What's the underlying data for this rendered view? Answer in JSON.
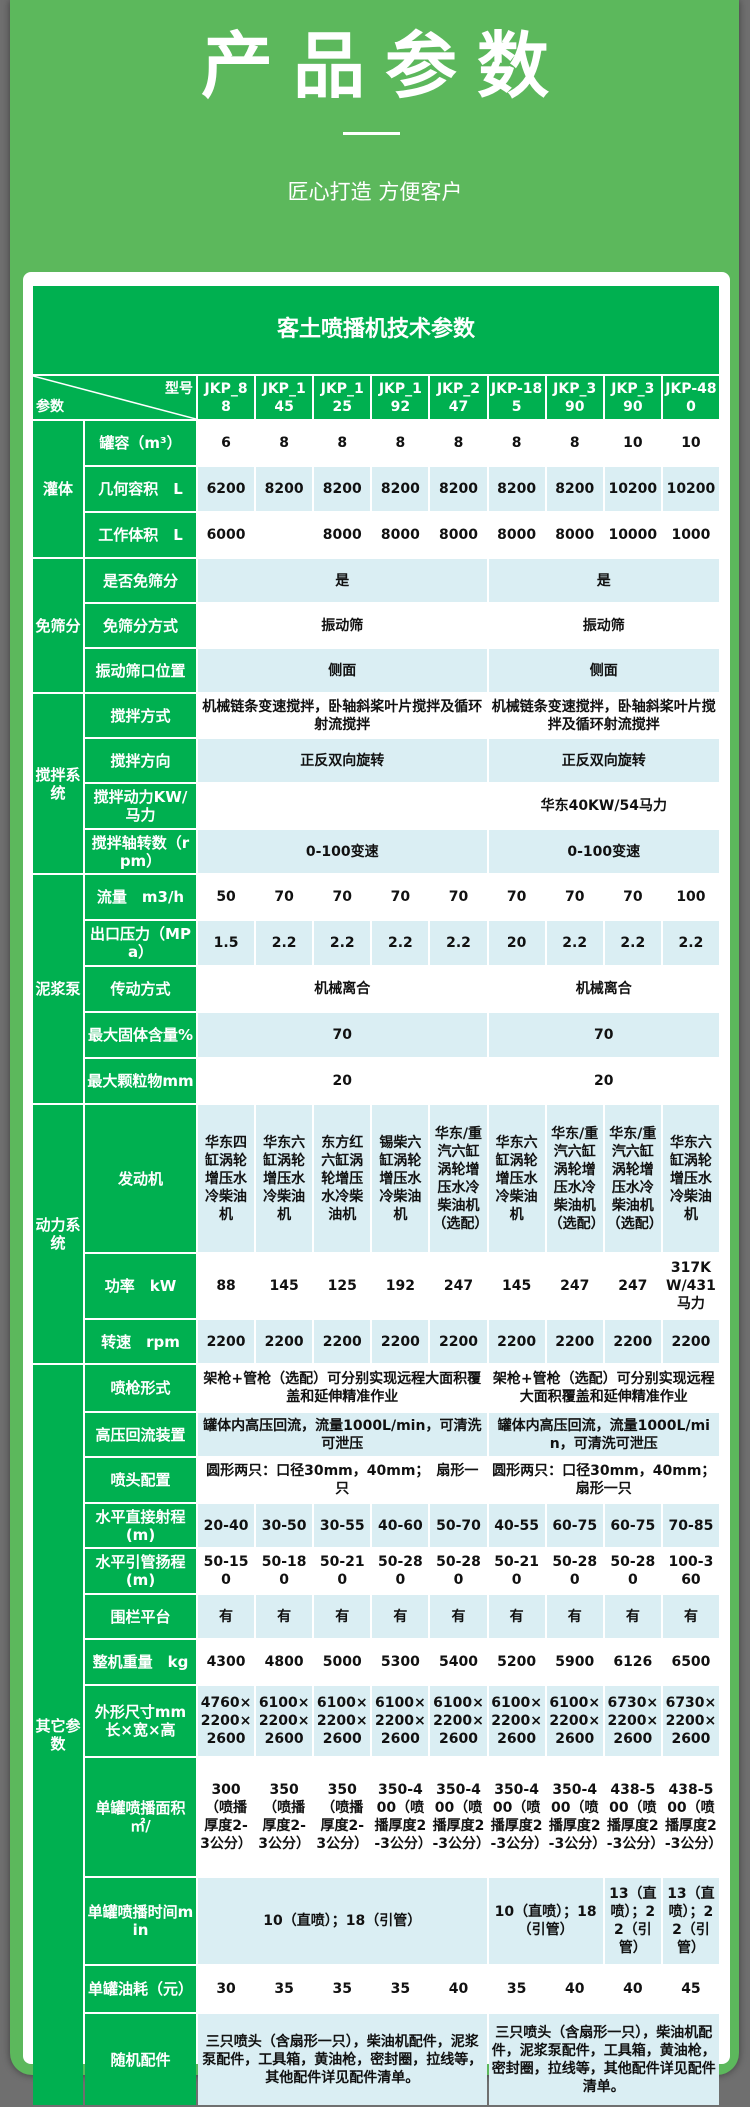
{
  "hero": {
    "title": "产品参数",
    "subtitle": "匠心打造 方便客户"
  },
  "table": {
    "title": "客土喷播机技术参数",
    "corner_top": "型号",
    "corner_bottom": "参数",
    "models": [
      "JKP_88",
      "JKP_145",
      "JKP_125",
      "JKP_192",
      "JKP_247",
      "JKP-185",
      "JKP_390",
      "JKP_390",
      "JKP-480"
    ],
    "groups": [
      {
        "label": "灌体",
        "rows": [
          {
            "label": "罐容（m³）",
            "cells": [
              {
                "text": "6"
              },
              {
                "text": "8"
              },
              {
                "text": "8"
              },
              {
                "text": "8"
              },
              {
                "text": "8"
              },
              {
                "text": "8"
              },
              {
                "text": "8"
              },
              {
                "text": "10"
              },
              {
                "text": "10"
              }
            ]
          },
          {
            "label": "几何容积　L",
            "cells": [
              {
                "text": "6200"
              },
              {
                "text": "8200"
              },
              {
                "text": "8200"
              },
              {
                "text": "8200"
              },
              {
                "text": "8200"
              },
              {
                "text": "8200"
              },
              {
                "text": "8200"
              },
              {
                "text": "10200"
              },
              {
                "text": "10200"
              }
            ]
          },
          {
            "label": "工作体积　L",
            "cells": [
              {
                "text": "6000"
              },
              {
                "text": ""
              },
              {
                "text": "8000"
              },
              {
                "text": "8000"
              },
              {
                "text": "8000"
              },
              {
                "text": "8000"
              },
              {
                "text": "8000"
              },
              {
                "text": "10000"
              },
              {
                "text": "1000"
              }
            ]
          }
        ]
      },
      {
        "label": "免筛分",
        "rows": [
          {
            "label": "是否免筛分",
            "cells": [
              {
                "text": "是",
                "span": 5
              },
              {
                "text": "是",
                "span": 4
              }
            ]
          },
          {
            "label": "免筛分方式",
            "cells": [
              {
                "text": "振动筛",
                "span": 5
              },
              {
                "text": "振动筛",
                "span": 4
              }
            ]
          },
          {
            "label": "振动筛口位置",
            "cells": [
              {
                "text": "侧面",
                "span": 5
              },
              {
                "text": "侧面",
                "span": 4
              }
            ]
          }
        ]
      },
      {
        "label": "搅拌系统",
        "rows": [
          {
            "label": "搅拌方式",
            "cells": [
              {
                "text": "机械链条变速搅拌，卧轴斜桨叶片搅拌及循环射流搅拌",
                "span": 5
              },
              {
                "text": "机械链条变速搅拌，卧轴斜桨叶片搅拌及循环射流搅拌",
                "span": 4
              }
            ]
          },
          {
            "label": "搅拌方向",
            "cells": [
              {
                "text": "正反双向旋转",
                "span": 5
              },
              {
                "text": "正反双向旋转",
                "span": 4
              }
            ]
          },
          {
            "label": "搅拌动力KW/马力",
            "cells": [
              {
                "text": "",
                "span": 5
              },
              {
                "text": "华东40KW/54马力",
                "span": 4
              }
            ]
          },
          {
            "label": "搅拌轴转数（rpm）",
            "cells": [
              {
                "text": "0-100变速",
                "span": 5
              },
              {
                "text": "0-100变速",
                "span": 4
              }
            ]
          }
        ]
      },
      {
        "label": "泥浆泵",
        "rows": [
          {
            "label": "流量　m3/h",
            "cells": [
              {
                "text": "50"
              },
              {
                "text": "70"
              },
              {
                "text": "70"
              },
              {
                "text": "70"
              },
              {
                "text": "70"
              },
              {
                "text": "70"
              },
              {
                "text": "70"
              },
              {
                "text": "70"
              },
              {
                "text": "100"
              }
            ]
          },
          {
            "label": "出口压力（MPa）",
            "cells": [
              {
                "text": "1.5"
              },
              {
                "text": "2.2"
              },
              {
                "text": "2.2"
              },
              {
                "text": "2.2"
              },
              {
                "text": "2.2"
              },
              {
                "text": "20"
              },
              {
                "text": "2.2"
              },
              {
                "text": "2.2"
              },
              {
                "text": "2.2"
              }
            ]
          },
          {
            "label": "传动方式",
            "cells": [
              {
                "text": "机械离合",
                "span": 5
              },
              {
                "text": "机械离合",
                "span": 4
              }
            ]
          },
          {
            "label": "最大固体含量%",
            "cells": [
              {
                "text": "70",
                "span": 5
              },
              {
                "text": "70",
                "span": 4
              }
            ]
          },
          {
            "label": "最大颗粒物mm",
            "cells": [
              {
                "text": "20",
                "span": 5
              },
              {
                "text": "20",
                "span": 4
              }
            ]
          }
        ]
      },
      {
        "label": "动力系统",
        "rows": [
          {
            "label": "发动机",
            "cells": [
              {
                "text": "华东四缸涡轮增压水冷柴油机"
              },
              {
                "text": "华东六缸涡轮增压水冷柴油机"
              },
              {
                "text": "东方红六缸涡轮增压水冷柴油机"
              },
              {
                "text": "锡柴六缸涡轮增压水冷柴油机"
              },
              {
                "text": "华东/重汽六缸涡轮增压水冷柴油机（选配）"
              },
              {
                "text": "华东六缸涡轮增压水冷柴油机"
              },
              {
                "text": "华东/重汽六缸涡轮增压水冷柴油机（选配）"
              },
              {
                "text": "华东/重汽六缸涡轮增压水冷柴油机（选配）"
              },
              {
                "text": "华东六缸涡轮增压水冷柴油机"
              }
            ]
          },
          {
            "label": "功率　kW",
            "cells": [
              {
                "text": "88"
              },
              {
                "text": "145"
              },
              {
                "text": "125"
              },
              {
                "text": "192"
              },
              {
                "text": "247"
              },
              {
                "text": "145"
              },
              {
                "text": "247"
              },
              {
                "text": "247"
              },
              {
                "text": "317KW/431马力"
              }
            ]
          },
          {
            "label": "转速　rpm",
            "cells": [
              {
                "text": "2200"
              },
              {
                "text": "2200"
              },
              {
                "text": "2200"
              },
              {
                "text": "2200"
              },
              {
                "text": "2200"
              },
              {
                "text": "2200"
              },
              {
                "text": "2200"
              },
              {
                "text": "2200"
              },
              {
                "text": "2200"
              }
            ]
          }
        ]
      },
      {
        "label": "其它参数",
        "rows": [
          {
            "label": "喷枪形式",
            "cells": [
              {
                "text": "架枪+管枪（选配）可分别实现远程大面积覆盖和延伸精准作业",
                "span": 5
              },
              {
                "text": "架枪+管枪（选配）可分别实现远程大面积覆盖和延伸精准作业",
                "span": 4
              }
            ]
          },
          {
            "label": "高压回流装置",
            "cells": [
              {
                "text": "罐体内高压回流，流量1000L/min，可清洗可泄压",
                "span": 5
              },
              {
                "text": "罐体内高压回流，流量1000L/min，可清洗可泄压",
                "span": 4
              }
            ]
          },
          {
            "label": "喷头配置",
            "cells": [
              {
                "text": "圆形两只：口径30mm，40mm；　扇形一只",
                "span": 5
              },
              {
                "text": "圆形两只：口径30mm，40mm；扇形一只",
                "span": 4
              }
            ]
          },
          {
            "label": "水平直接射程(m)",
            "cells": [
              {
                "text": "20-40"
              },
              {
                "text": "30-50"
              },
              {
                "text": "30-55"
              },
              {
                "text": "40-60"
              },
              {
                "text": "50-70"
              },
              {
                "text": "40-55"
              },
              {
                "text": "60-75"
              },
              {
                "text": "60-75"
              },
              {
                "text": "70-85"
              }
            ]
          },
          {
            "label": "水平引管扬程(m)",
            "cells": [
              {
                "text": "50-150"
              },
              {
                "text": "50-180"
              },
              {
                "text": "50-210"
              },
              {
                "text": "50-280"
              },
              {
                "text": "50-280"
              },
              {
                "text": "50-210"
              },
              {
                "text": "50-280"
              },
              {
                "text": "50-280"
              },
              {
                "text": "100-360"
              }
            ]
          },
          {
            "label": "围栏平台",
            "cells": [
              {
                "text": "有"
              },
              {
                "text": "有"
              },
              {
                "text": "有"
              },
              {
                "text": "有"
              },
              {
                "text": "有"
              },
              {
                "text": "有"
              },
              {
                "text": "有"
              },
              {
                "text": "有"
              },
              {
                "text": "有"
              }
            ]
          },
          {
            "label": "整机重量　kg",
            "cells": [
              {
                "text": "4300"
              },
              {
                "text": "4800"
              },
              {
                "text": "5000"
              },
              {
                "text": "5300"
              },
              {
                "text": "5400"
              },
              {
                "text": "5200"
              },
              {
                "text": "5900"
              },
              {
                "text": "6126"
              },
              {
                "text": "6500"
              }
            ]
          },
          {
            "label": "外形尺寸mm 长×宽×高",
            "cells": [
              {
                "text": "4760×2200×2600"
              },
              {
                "text": "6100×2200×2600"
              },
              {
                "text": "6100×2200×2600"
              },
              {
                "text": "6100×2200×2600"
              },
              {
                "text": "6100×2200×2600"
              },
              {
                "text": "6100×2200×2600"
              },
              {
                "text": "6100×2200×2600"
              },
              {
                "text": "6730×2200×2600"
              },
              {
                "text": "6730×2200×2600"
              }
            ]
          },
          {
            "label": "单罐喷播面积㎡/",
            "cells": [
              {
                "text": "300（喷播厚度2-3公分）"
              },
              {
                "text": "350（喷播厚度2-3公分）"
              },
              {
                "text": "350（喷播厚度2-3公分）"
              },
              {
                "text": "350-400（喷播厚度2-3公分）"
              },
              {
                "text": "350-400（喷播厚度2-3公分）"
              },
              {
                "text": "350-400（喷播厚度2-3公分）"
              },
              {
                "text": "350-400（喷播厚度2-3公分）"
              },
              {
                "text": "438-500（喷播厚度2-3公分）"
              },
              {
                "text": "438-500（喷播厚度2-3公分）"
              }
            ]
          },
          {
            "label": "单罐喷播时间min",
            "cells": [
              {
                "text": "10（直喷）；18（引管）",
                "span": 5
              },
              {
                "text": "10（直喷）；18（引管）",
                "span": 2
              },
              {
                "text": "13（直喷）；22（引管）"
              },
              {
                "text": "13（直喷）；22（引管）"
              }
            ]
          },
          {
            "label": "单罐油耗（元）",
            "cells": [
              {
                "text": "30"
              },
              {
                "text": "35"
              },
              {
                "text": "35"
              },
              {
                "text": "35"
              },
              {
                "text": "40"
              },
              {
                "text": "35"
              },
              {
                "text": "40"
              },
              {
                "text": "40"
              },
              {
                "text": "45"
              }
            ]
          },
          {
            "label": "随机配件",
            "cells": [
              {
                "text": "三只喷头（含扇形一只），柴油机配件，泥浆泵配件，工具箱，黄油枪，密封圈，拉线等，其他配件详见配件清单。",
                "span": 5
              },
              {
                "text": "三只喷头（含扇形一只），柴油机配件，泥浆泵配件，工具箱，黄油枪，密封圈，拉线等，其他配件详见配件清单。",
                "span": 4
              }
            ]
          }
        ]
      }
    ]
  },
  "colors": {
    "panel": "#5cb85c",
    "header_green": "#00b050",
    "row_blue": "#daeef3"
  }
}
